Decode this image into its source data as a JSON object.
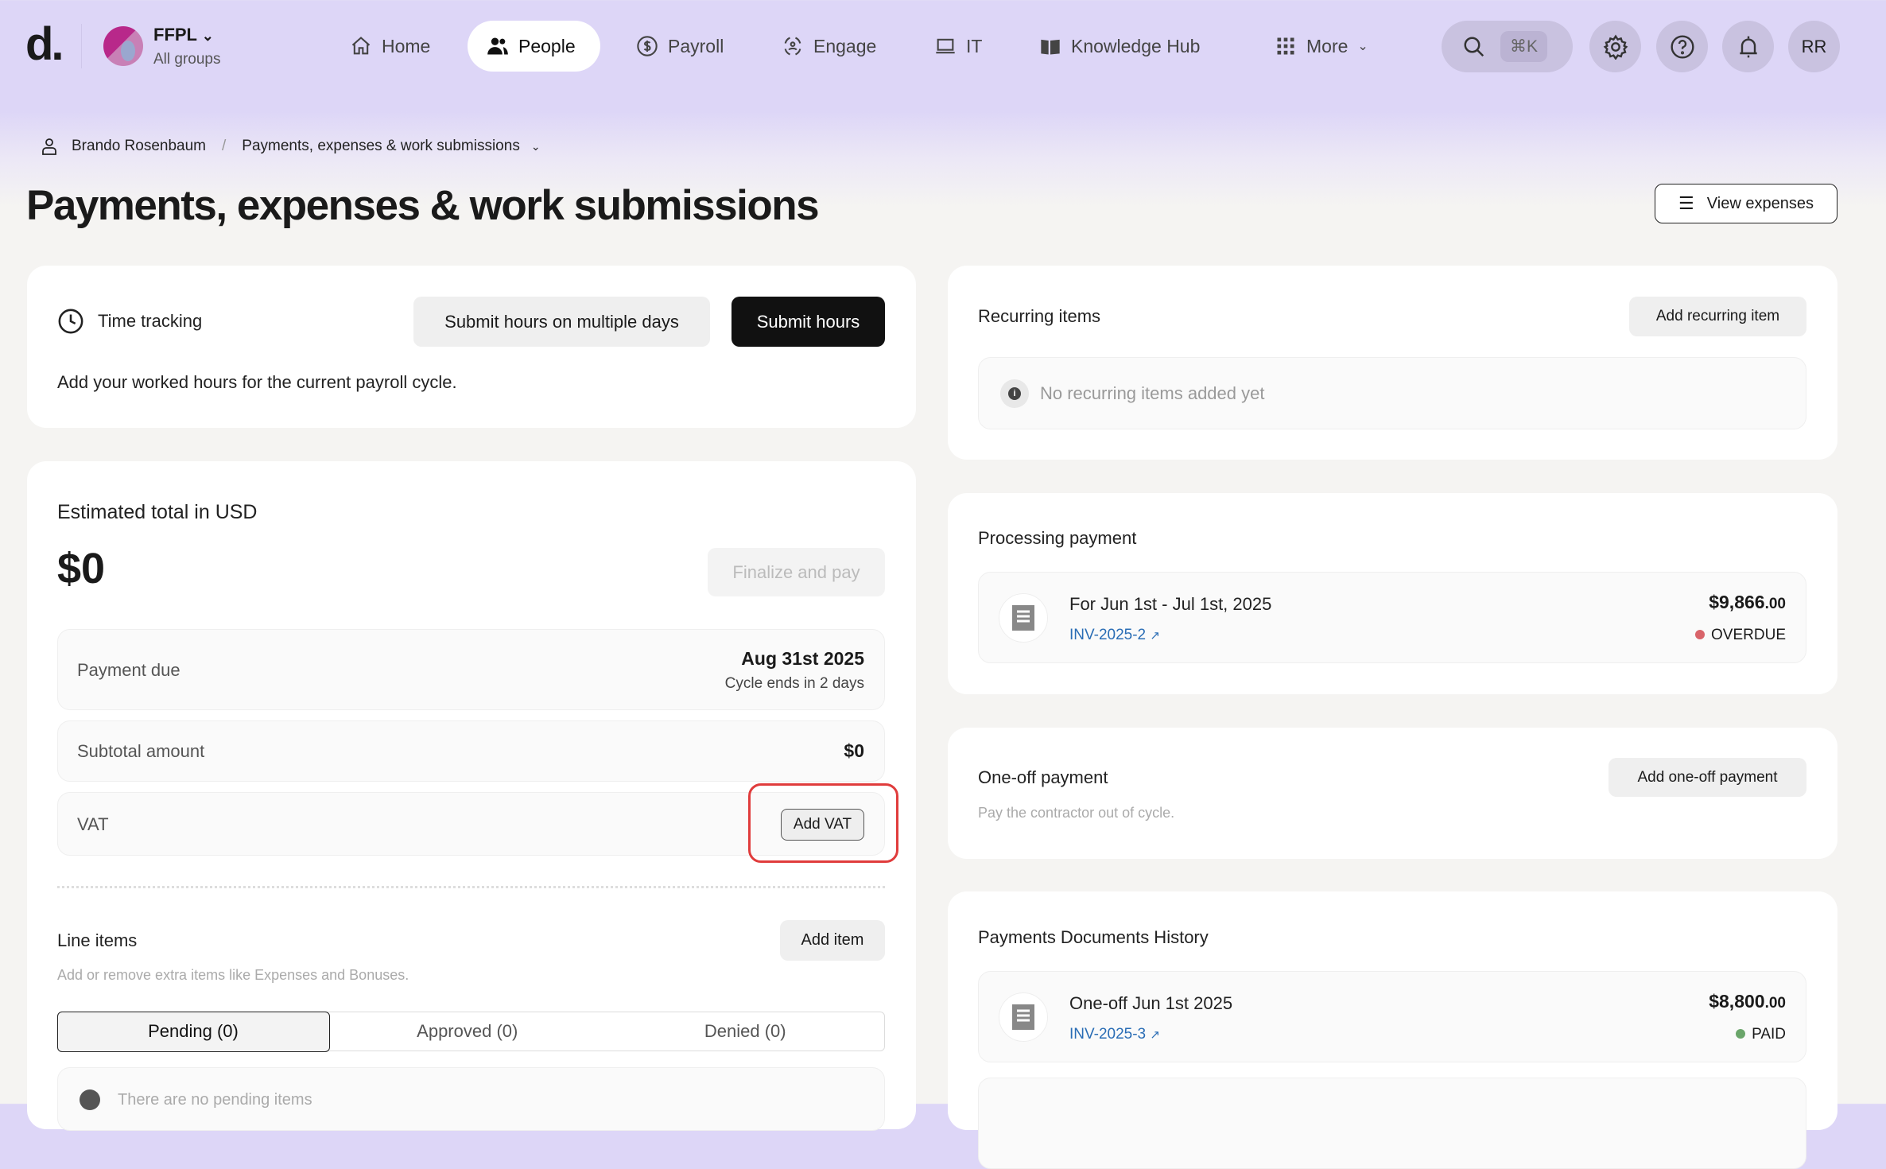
{
  "header": {
    "logo": "d.",
    "org_name": "FFPL",
    "org_sub": "All groups",
    "nav": [
      {
        "label": "Home",
        "icon": "home-icon"
      },
      {
        "label": "People",
        "icon": "people-icon",
        "active": true
      },
      {
        "label": "Payroll",
        "icon": "dollar-icon"
      },
      {
        "label": "Engage",
        "icon": "engage-icon"
      },
      {
        "label": "IT",
        "icon": "laptop-icon"
      },
      {
        "label": "Knowledge Hub",
        "icon": "book-icon"
      },
      {
        "label": "More",
        "icon": "grid-icon"
      }
    ],
    "search_shortcut": "⌘K",
    "avatar_initials": "RR"
  },
  "breadcrumb": {
    "person": "Brando Rosenbaum",
    "separator": "/",
    "current": "Payments, expenses & work submissions"
  },
  "page": {
    "title": "Payments, expenses & work submissions",
    "view_expenses": "View expenses"
  },
  "time_tracking": {
    "title": "Time tracking",
    "multi_days": "Submit hours on multiple days",
    "submit": "Submit hours",
    "description": "Add your worked hours for the current payroll cycle."
  },
  "estimate": {
    "title": "Estimated total in USD",
    "total": "$0",
    "finalize": "Finalize and pay",
    "payment_due_label": "Payment due",
    "payment_due_date": "Aug 31st 2025",
    "cycle_note": "Cycle ends in 2 days",
    "subtotal_label": "Subtotal amount",
    "subtotal_value": "$0",
    "vat_label": "VAT",
    "add_vat": "Add VAT"
  },
  "line_items": {
    "title": "Line items",
    "add": "Add item",
    "description": "Add or remove extra items like Expenses and Bonuses.",
    "tabs": [
      "Pending (0)",
      "Approved (0)",
      "Denied (0)"
    ],
    "empty": "There are no pending items"
  },
  "recurring": {
    "title": "Recurring items",
    "add": "Add recurring item",
    "empty": "No recurring items added yet"
  },
  "processing": {
    "title": "Processing payment",
    "item": {
      "title": "For Jun 1st - Jul 1st, 2025",
      "invoice": "INV-2025-2",
      "amount": "$9,866",
      "cents": ".00",
      "status": "OVERDUE",
      "status_color": "#d9646a"
    }
  },
  "one_off": {
    "title": "One-off payment",
    "description": "Pay the contractor out of cycle.",
    "add": "Add one-off payment"
  },
  "history": {
    "title": "Payments Documents History",
    "items": [
      {
        "title": "One-off Jun 1st 2025",
        "invoice": "INV-2025-3",
        "amount": "$8,800",
        "cents": ".00",
        "status": "PAID",
        "status_color": "#6aa56a"
      }
    ]
  },
  "colors": {
    "header_bg": "#ddd6f7",
    "highlight": "#e03c3c",
    "link": "#2a6db5"
  }
}
